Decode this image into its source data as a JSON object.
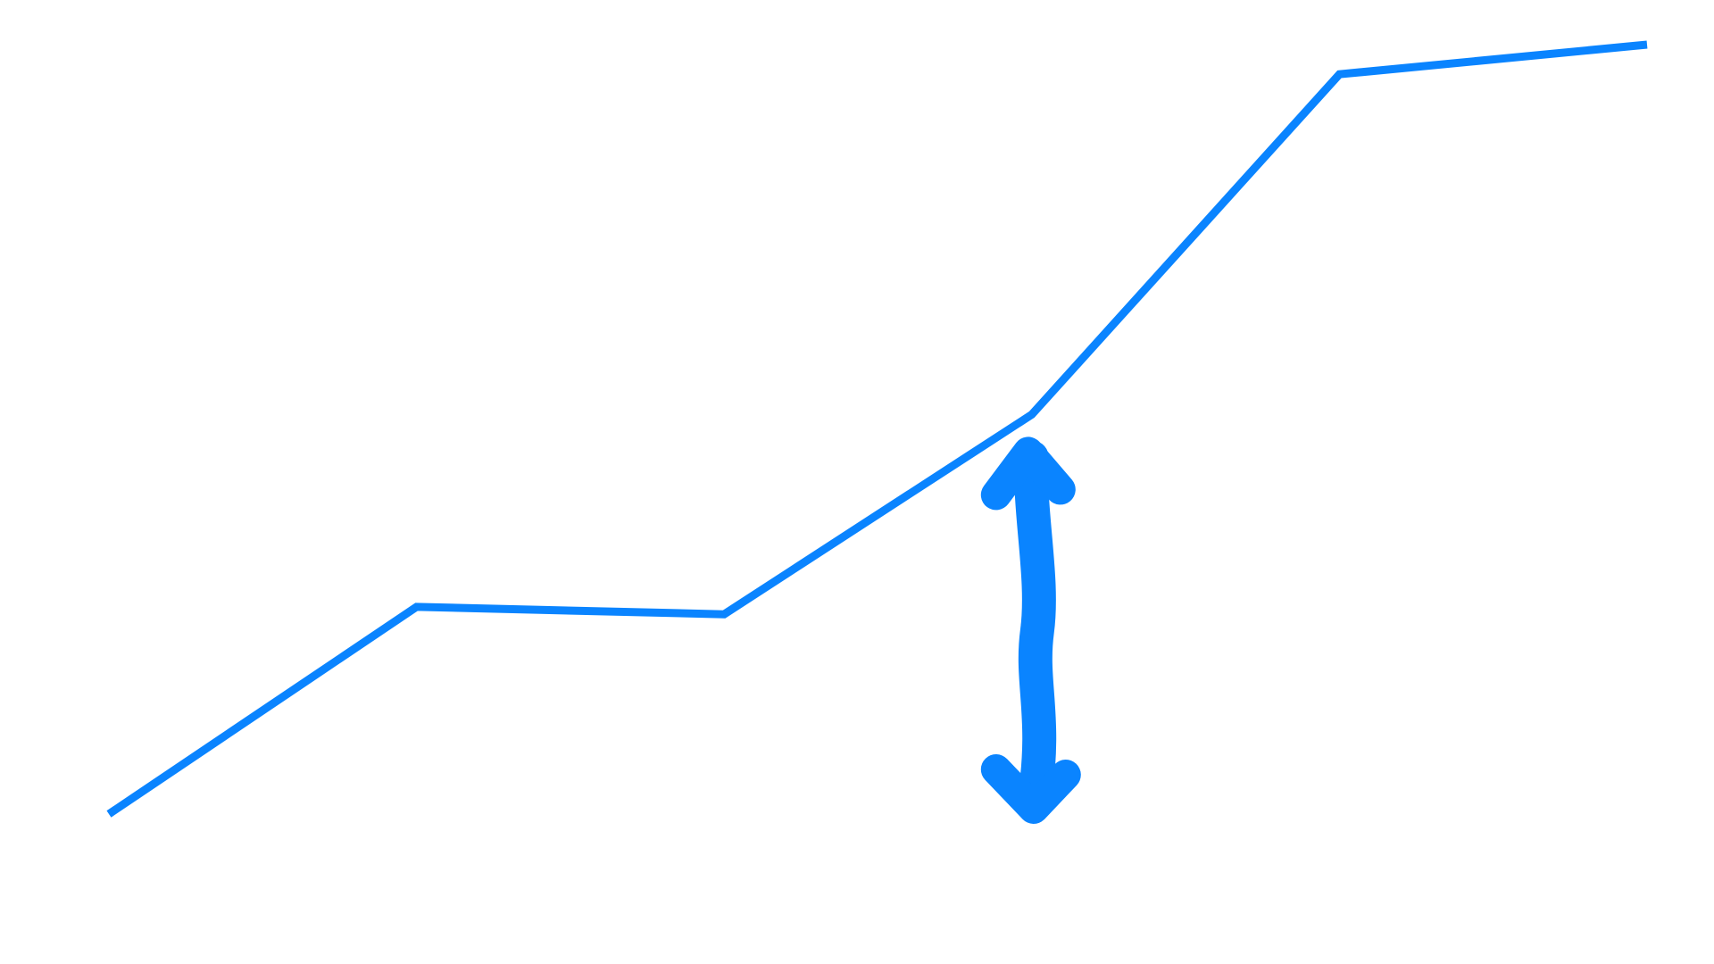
{
  "chart_data": {
    "type": "line",
    "title": "",
    "xlabel": "",
    "ylabel": "",
    "x": [
      0,
      1,
      2,
      3,
      4,
      5
    ],
    "series": [
      {
        "values": [
          0,
          0.28,
          0.27,
          0.54,
          1.0,
          1.04
        ]
      }
    ],
    "xlim": [
      0,
      5
    ],
    "ylim": [
      0,
      1.04
    ],
    "grid": false,
    "axes_visible": false,
    "annotation": {
      "type": "double-arrow",
      "x": 3,
      "from": 0,
      "to": 0.54
    }
  },
  "colors": {
    "line": "#0a84ff",
    "background": "#ffffff"
  }
}
